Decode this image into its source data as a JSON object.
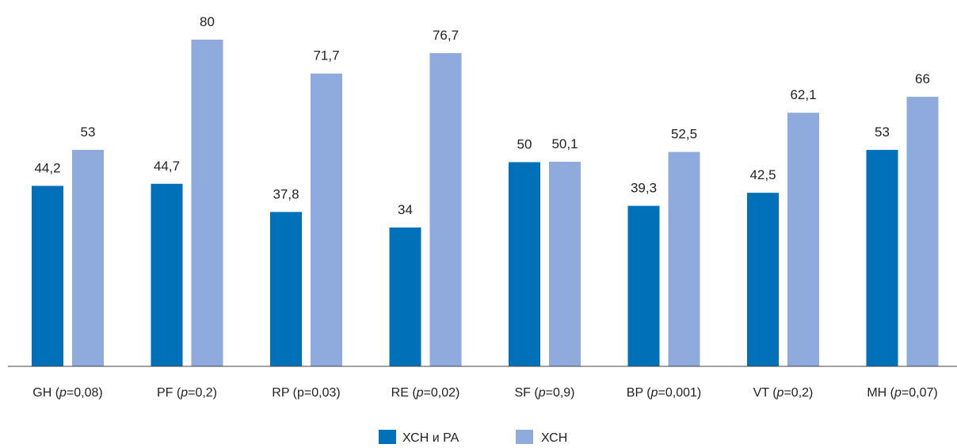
{
  "chart_data": {
    "type": "bar",
    "categories": [
      {
        "name": "GH",
        "p": "0,08",
        "p_italic": true
      },
      {
        "name": "PF",
        "p": "0,2",
        "p_italic": true
      },
      {
        "name": "RP",
        "p": "0,03",
        "p_italic": false
      },
      {
        "name": "RE",
        "p": "0,02",
        "p_italic": true
      },
      {
        "name": "SF",
        "p": "0,9",
        "p_italic": true
      },
      {
        "name": "BP",
        "p": "0,001",
        "p_italic": true
      },
      {
        "name": "VT",
        "p": "0,2",
        "p_italic": true
      },
      {
        "name": "MH",
        "p": "0,07",
        "p_italic": true
      }
    ],
    "series": [
      {
        "name": "ХСН и РА",
        "color": "#0070b8",
        "values": [
          44.2,
          44.7,
          37.8,
          34,
          50,
          39.3,
          42.5,
          53
        ],
        "labels": [
          "44,2",
          "44,7",
          "37,8",
          "34",
          "50",
          "39,3",
          "42,5",
          "53"
        ]
      },
      {
        "name": "ХСН",
        "color": "#8faadc",
        "values": [
          53,
          80,
          71.7,
          76.7,
          50.1,
          52.5,
          62.1,
          66
        ],
        "labels": [
          "53",
          "80",
          "71,7",
          "76,7",
          "50,1",
          "52,5",
          "62,1",
          "66"
        ]
      }
    ],
    "ylim": [
      0,
      100
    ],
    "grid": false,
    "legend_position": "bottom-center"
  }
}
